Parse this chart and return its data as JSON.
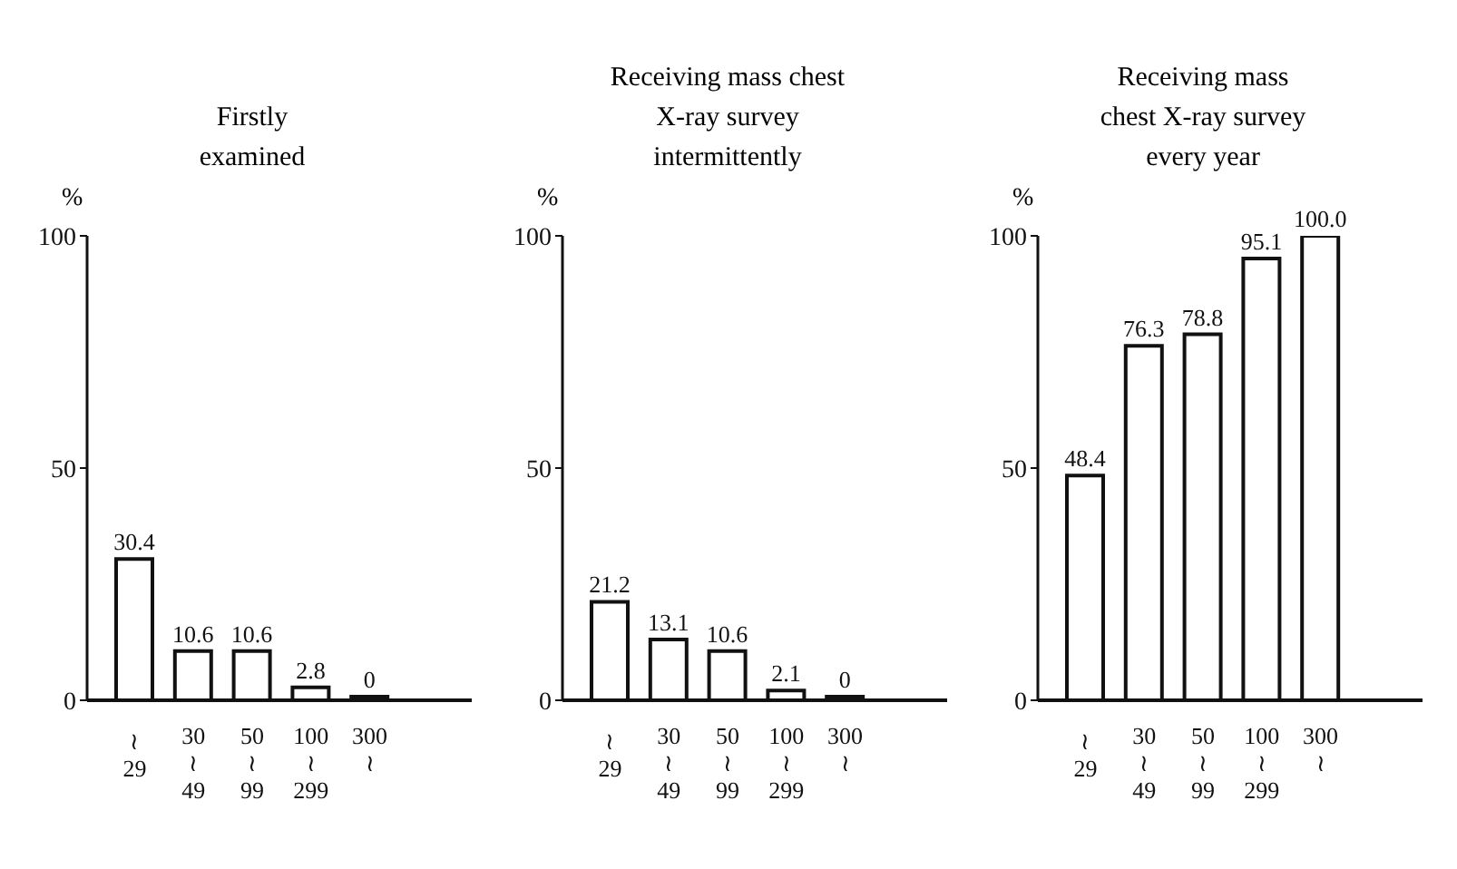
{
  "chart_data": [
    {
      "type": "bar",
      "title": "Firstly examined",
      "ylabel": "%",
      "categories": [
        "\n≀\n29",
        "30\n≀\n49",
        "50\n≀\n99",
        "100\n≀\n299",
        "300\n≀"
      ],
      "values": [
        30.4,
        10.6,
        10.6,
        2.8,
        0
      ],
      "value_labels": [
        "30.4",
        "10.6",
        "10.6",
        "2.8",
        "0"
      ],
      "color": "#ffffff",
      "ylim": [
        0,
        100
      ],
      "yticks": [
        0,
        50,
        100
      ],
      "grid": false,
      "legend": false
    },
    {
      "type": "bar",
      "title": "Receiving mass chest X-ray survey intermittently",
      "ylabel": "%",
      "categories": [
        "\n≀\n29",
        "30\n≀\n49",
        "50\n≀\n99",
        "100\n≀\n299",
        "300\n≀"
      ],
      "values": [
        21.2,
        13.1,
        10.6,
        2.1,
        0
      ],
      "value_labels": [
        "21.2",
        "13.1",
        "10.6",
        "2.1",
        "0"
      ],
      "color": "#ffffff",
      "ylim": [
        0,
        100
      ],
      "yticks": [
        0,
        50,
        100
      ],
      "grid": false,
      "legend": false
    },
    {
      "type": "bar",
      "title": "Receiving mass chest X-ray survey every year",
      "ylabel": "%",
      "categories": [
        "\n≀\n29",
        "30\n≀\n49",
        "50\n≀\n99",
        "100\n≀\n299",
        "300\n≀"
      ],
      "values": [
        48.4,
        76.3,
        78.8,
        95.1,
        100.0
      ],
      "value_labels": [
        "48.4",
        "76.3",
        "78.8",
        "95.1",
        "100.0"
      ],
      "color": "#ffffff",
      "ylim": [
        0,
        100
      ],
      "yticks": [
        0,
        50,
        100
      ],
      "grid": false,
      "legend": false
    }
  ]
}
